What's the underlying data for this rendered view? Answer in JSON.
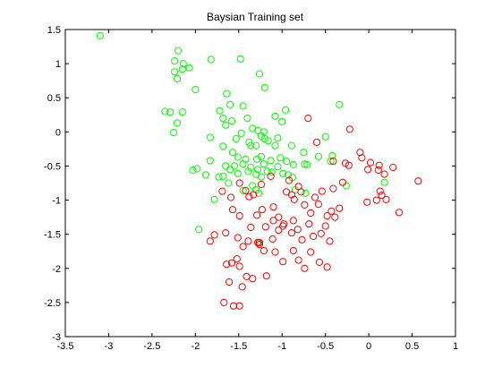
{
  "chart_data": {
    "type": "scatter",
    "title": "Baysian Training set",
    "xlabel": "",
    "ylabel": "",
    "xlim": [
      -3.5,
      1
    ],
    "ylim": [
      -3,
      1.5
    ],
    "xticks": [
      "-3.5",
      "-3",
      "-2.5",
      "-2",
      "-1.5",
      "-1",
      "-0.5",
      "0",
      "0.5",
      "1"
    ],
    "yticks": [
      "1.5",
      "1",
      "0.5",
      "0",
      "-0.5",
      "-1",
      "-1.5",
      "-2",
      "-2.5",
      "-3"
    ],
    "xtick_values": [
      -3.5,
      -3,
      -2.5,
      -2,
      -1.5,
      -1,
      -0.5,
      0,
      0.5,
      1
    ],
    "ytick_values": [
      1.5,
      1,
      0.5,
      0,
      -0.5,
      -1,
      -1.5,
      -2,
      -2.5,
      -3
    ],
    "grid": false,
    "marker": "open-circle",
    "series": [
      {
        "color": "#00ff00",
        "points": [
          [
            -3.1,
            1.41
          ],
          [
            -2.2,
            1.19
          ],
          [
            -2.24,
            1.04
          ],
          [
            -2.14,
            1.0
          ],
          [
            -2.07,
            0.94
          ],
          [
            -1.82,
            1.06
          ],
          [
            -2.15,
            0.92
          ],
          [
            -2.24,
            0.88
          ],
          [
            -2.21,
            0.78
          ],
          [
            -1.48,
            1.07
          ],
          [
            -1.26,
            0.85
          ],
          [
            -1.2,
            0.65
          ],
          [
            -1.64,
            0.56
          ],
          [
            -1.6,
            0.4
          ],
          [
            -1.72,
            0.31
          ],
          [
            -2.35,
            0.3
          ],
          [
            -2.29,
            0.29
          ],
          [
            -2.15,
            0.29
          ],
          [
            -2.21,
            0.13
          ],
          [
            -2.25,
            -0.01
          ],
          [
            -2.0,
            0.62
          ],
          [
            -1.45,
            0.38
          ],
          [
            -0.96,
            0.32
          ],
          [
            -0.34,
            0.4
          ],
          [
            -1.68,
            0.2
          ],
          [
            -1.65,
            0.1
          ],
          [
            -1.58,
            0.16
          ],
          [
            -1.4,
            0.2
          ],
          [
            -1.0,
            0.15
          ],
          [
            -1.08,
            0.23
          ],
          [
            -1.34,
            0.05
          ],
          [
            -1.28,
            0.02
          ],
          [
            -1.24,
            -0.06
          ],
          [
            -1.21,
            0.0
          ],
          [
            -1.2,
            -0.1
          ],
          [
            -1.47,
            -0.02
          ],
          [
            -1.53,
            -0.1
          ],
          [
            -1.38,
            -0.15
          ],
          [
            -1.36,
            -0.2
          ],
          [
            -1.3,
            -0.2
          ],
          [
            -1.16,
            -0.13
          ],
          [
            -1.08,
            -0.2
          ],
          [
            -1.05,
            -0.09
          ],
          [
            -0.89,
            -0.2
          ],
          [
            -0.75,
            -0.3
          ],
          [
            -1.68,
            -0.21
          ],
          [
            -1.83,
            -0.08
          ],
          [
            -1.57,
            -0.3
          ],
          [
            -1.51,
            -0.37
          ],
          [
            -1.42,
            -0.4
          ],
          [
            -1.29,
            -0.4
          ],
          [
            -1.24,
            -0.36
          ],
          [
            -1.21,
            -0.47
          ],
          [
            -1.13,
            -0.42
          ],
          [
            -1.02,
            -0.38
          ],
          [
            -0.95,
            -0.43
          ],
          [
            -0.87,
            -0.48
          ],
          [
            -0.74,
            -0.47
          ],
          [
            -0.71,
            -0.48
          ],
          [
            -0.58,
            -0.36
          ],
          [
            -0.5,
            -0.07
          ],
          [
            -0.44,
            -0.43
          ],
          [
            -0.42,
            -0.35
          ],
          [
            -1.83,
            -0.42
          ],
          [
            -1.88,
            -0.63
          ],
          [
            -1.65,
            -0.5
          ],
          [
            -1.6,
            -0.55
          ],
          [
            -1.55,
            -0.5
          ],
          [
            -1.51,
            -0.61
          ],
          [
            -1.45,
            -0.47
          ],
          [
            -1.39,
            -0.58
          ],
          [
            -1.36,
            -0.52
          ],
          [
            -1.28,
            -0.55
          ],
          [
            -1.24,
            -0.66
          ],
          [
            -1.17,
            -0.58
          ],
          [
            -1.12,
            -0.59
          ],
          [
            -1.05,
            -0.51
          ],
          [
            -0.99,
            -0.61
          ],
          [
            -0.93,
            -0.63
          ],
          [
            -0.88,
            -0.67
          ],
          [
            -2.03,
            -0.56
          ],
          [
            -1.98,
            -0.54
          ],
          [
            -1.73,
            -0.66
          ],
          [
            -1.68,
            -0.65
          ],
          [
            -1.62,
            -0.75
          ],
          [
            -1.45,
            -0.86
          ],
          [
            -1.34,
            -0.79
          ],
          [
            -1.3,
            -0.85
          ],
          [
            -1.27,
            -0.9
          ],
          [
            -1.3,
            -0.62
          ],
          [
            -0.73,
            -0.9
          ],
          [
            -0.26,
            -0.79
          ],
          [
            0.18,
            -0.74
          ],
          [
            -1.78,
            -0.99
          ],
          [
            -1.96,
            -1.43
          ],
          [
            -1.27,
            -1.63
          ],
          [
            -0.85,
            -0.85
          ]
        ]
      },
      {
        "color": "#ff0000",
        "points": [
          [
            -0.7,
            0.2
          ],
          [
            -0.22,
            0.04
          ],
          [
            -0.6,
            -0.15
          ],
          [
            -0.41,
            -0.43
          ],
          [
            -1.24,
            -0.77
          ],
          [
            -1.13,
            -0.65
          ],
          [
            -0.92,
            -0.71
          ],
          [
            -0.81,
            -0.8
          ],
          [
            -0.62,
            -0.96
          ],
          [
            -0.54,
            -0.87
          ],
          [
            -0.41,
            -0.83
          ],
          [
            -1.69,
            -0.87
          ],
          [
            -1.59,
            -0.96
          ],
          [
            -1.49,
            -0.75
          ],
          [
            -1.42,
            -0.86
          ],
          [
            -1.38,
            -0.95
          ],
          [
            -1.33,
            -0.92
          ],
          [
            -1.23,
            -1.14
          ],
          [
            -1.1,
            -1.1
          ],
          [
            -1.04,
            -1.25
          ],
          [
            -0.98,
            -1.35
          ],
          [
            -0.95,
            -0.88
          ],
          [
            -0.86,
            -0.99
          ],
          [
            -0.74,
            -1.07
          ],
          [
            -0.67,
            -1.19
          ],
          [
            -0.58,
            -1.06
          ],
          [
            -0.48,
            -1.23
          ],
          [
            -0.43,
            -1.16
          ],
          [
            -1.57,
            -1.14
          ],
          [
            -1.49,
            -1.23
          ],
          [
            -1.36,
            -1.4
          ],
          [
            -1.29,
            -1.22
          ],
          [
            -1.19,
            -1.39
          ],
          [
            -1.11,
            -1.57
          ],
          [
            -1.04,
            -1.44
          ],
          [
            -0.99,
            -1.38
          ],
          [
            -0.89,
            -1.48
          ],
          [
            -0.82,
            -1.43
          ],
          [
            -0.77,
            -1.58
          ],
          [
            -0.69,
            -1.35
          ],
          [
            -0.64,
            -1.53
          ],
          [
            -0.55,
            -1.49
          ],
          [
            -0.5,
            -1.38
          ],
          [
            -0.45,
            -1.6
          ],
          [
            -0.39,
            -1.25
          ],
          [
            -0.34,
            -1.12
          ],
          [
            -1.78,
            -1.51
          ],
          [
            -1.65,
            -1.48
          ],
          [
            -1.51,
            -1.55
          ],
          [
            -1.45,
            -1.68
          ],
          [
            -1.39,
            -1.6
          ],
          [
            -1.26,
            -1.62
          ],
          [
            -1.21,
            -1.74
          ],
          [
            -1.08,
            -1.76
          ],
          [
            -0.99,
            -1.9
          ],
          [
            -0.87,
            -1.74
          ],
          [
            -0.81,
            -1.88
          ],
          [
            -0.74,
            -2.0
          ],
          [
            -0.67,
            -1.76
          ],
          [
            -0.57,
            -1.91
          ],
          [
            -0.48,
            -1.98
          ],
          [
            -1.83,
            -1.6
          ],
          [
            -1.64,
            -1.94
          ],
          [
            -1.58,
            -1.92
          ],
          [
            -1.52,
            -1.86
          ],
          [
            -1.49,
            -1.97
          ],
          [
            -1.41,
            -2.12
          ],
          [
            -1.34,
            -2.15
          ],
          [
            -1.18,
            -2.11
          ],
          [
            -1.61,
            -2.2
          ],
          [
            -1.46,
            -2.27
          ],
          [
            -1.67,
            -2.5
          ],
          [
            -1.56,
            -2.55
          ],
          [
            -1.49,
            -2.55
          ],
          [
            -0.1,
            -0.3
          ],
          [
            -0.08,
            -0.38
          ],
          [
            0.02,
            -0.45
          ],
          [
            0.12,
            -0.49
          ],
          [
            0.18,
            -0.62
          ],
          [
            0.28,
            -0.52
          ],
          [
            0.11,
            -0.56
          ],
          [
            -0.01,
            -0.55
          ],
          [
            -0.23,
            -0.49
          ],
          [
            -0.27,
            -0.46
          ],
          [
            -0.3,
            -0.74
          ],
          [
            0.13,
            -0.87
          ],
          [
            0.15,
            -0.93
          ],
          [
            0.2,
            -0.99
          ],
          [
            0.09,
            -1.0
          ],
          [
            -0.02,
            -1.03
          ],
          [
            0.57,
            -0.72
          ],
          [
            0.35,
            -1.18
          ],
          [
            -1.28,
            -1.62
          ],
          [
            -1.26,
            -1.65
          ],
          [
            -0.89,
            -0.92
          ],
          [
            -0.78,
            -0.88
          ],
          [
            -0.87,
            -1.3
          ],
          [
            -1.1,
            -1.3
          ]
        ]
      }
    ]
  }
}
